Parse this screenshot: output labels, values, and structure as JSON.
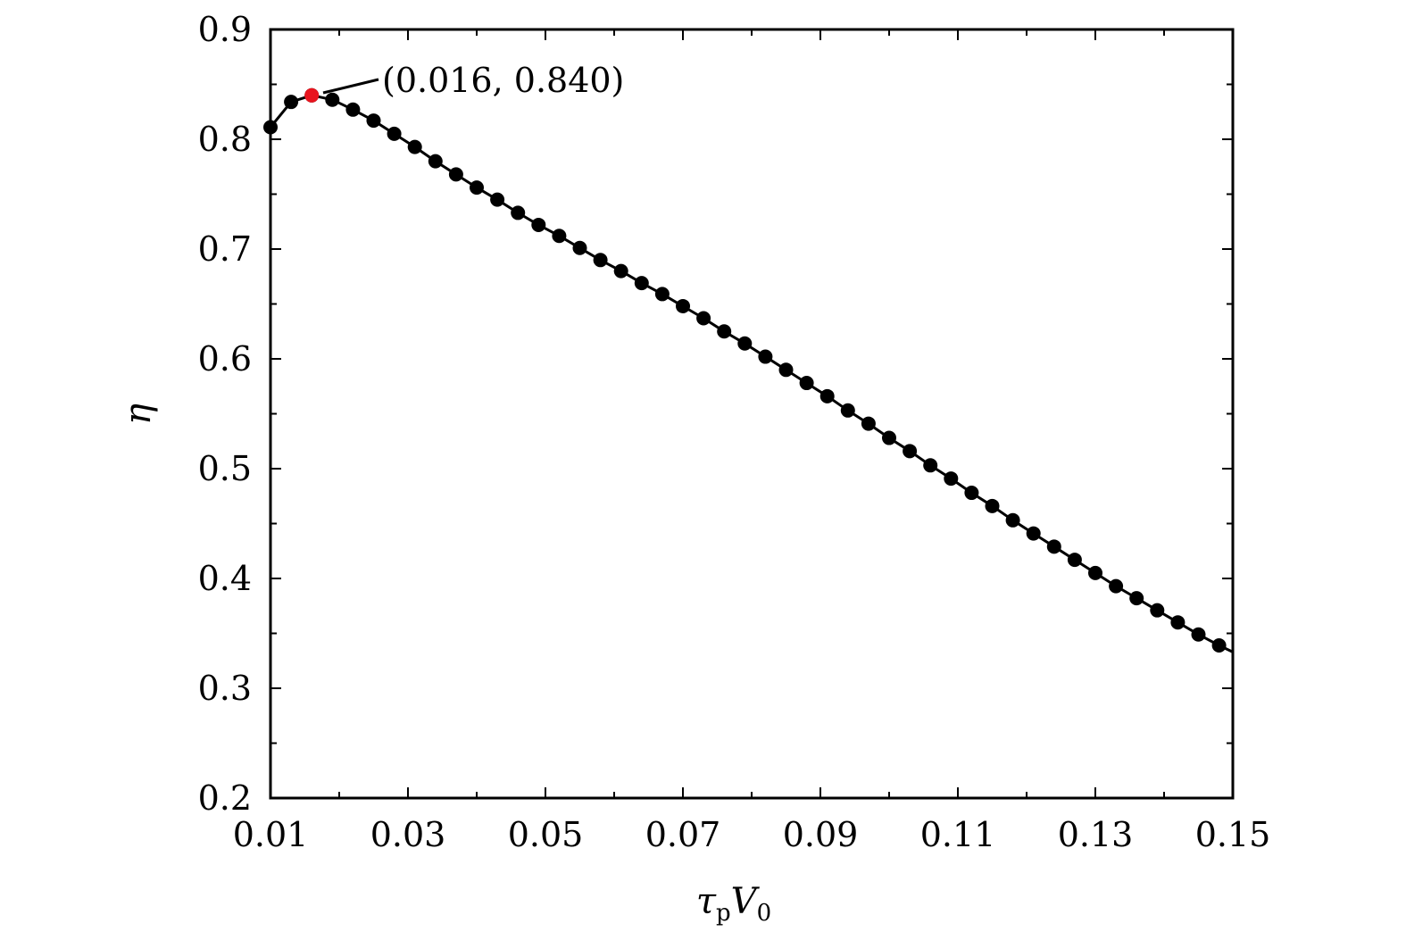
{
  "chart_data": {
    "type": "line",
    "xlabel": {
      "main": "τ",
      "sub1": "p",
      "mid": "V",
      "sub2": "0"
    },
    "ylabel": "η",
    "xlim": [
      0.01,
      0.15
    ],
    "ylim": [
      0.2,
      0.9
    ],
    "xticks": [
      "0.01",
      "0.03",
      "0.05",
      "0.07",
      "0.09",
      "0.11",
      "0.13",
      "0.15"
    ],
    "yticks": [
      "0.2",
      "0.3",
      "0.4",
      "0.5",
      "0.6",
      "0.7",
      "0.8",
      "0.9"
    ],
    "grid": false,
    "series": [
      {
        "x": [
          0.01,
          0.013,
          0.016,
          0.019,
          0.022,
          0.025,
          0.028,
          0.031,
          0.034,
          0.037,
          0.04,
          0.043,
          0.046,
          0.049,
          0.052,
          0.055,
          0.058,
          0.061,
          0.064,
          0.067,
          0.07,
          0.073,
          0.076,
          0.079,
          0.082,
          0.085,
          0.088,
          0.091,
          0.094,
          0.097,
          0.1,
          0.103,
          0.106,
          0.109,
          0.112,
          0.115,
          0.118,
          0.121,
          0.124,
          0.127,
          0.13,
          0.133,
          0.136,
          0.139,
          0.142,
          0.145,
          0.148,
          0.15
        ],
        "y": [
          0.811,
          0.834,
          0.84,
          0.836,
          0.827,
          0.817,
          0.805,
          0.793,
          0.78,
          0.768,
          0.756,
          0.745,
          0.733,
          0.722,
          0.712,
          0.701,
          0.69,
          0.68,
          0.669,
          0.659,
          0.648,
          0.637,
          0.625,
          0.614,
          0.602,
          0.59,
          0.578,
          0.566,
          0.553,
          0.541,
          0.528,
          0.516,
          0.503,
          0.491,
          0.478,
          0.466,
          0.453,
          0.441,
          0.429,
          0.417,
          0.405,
          0.393,
          0.382,
          0.371,
          0.36,
          0.349,
          0.339,
          0.333
        ],
        "color": "#000000"
      }
    ],
    "highlight": {
      "x": 0.016,
      "y": 0.84,
      "color": "#e8141e",
      "label": "(0.016, 0.840)"
    }
  }
}
